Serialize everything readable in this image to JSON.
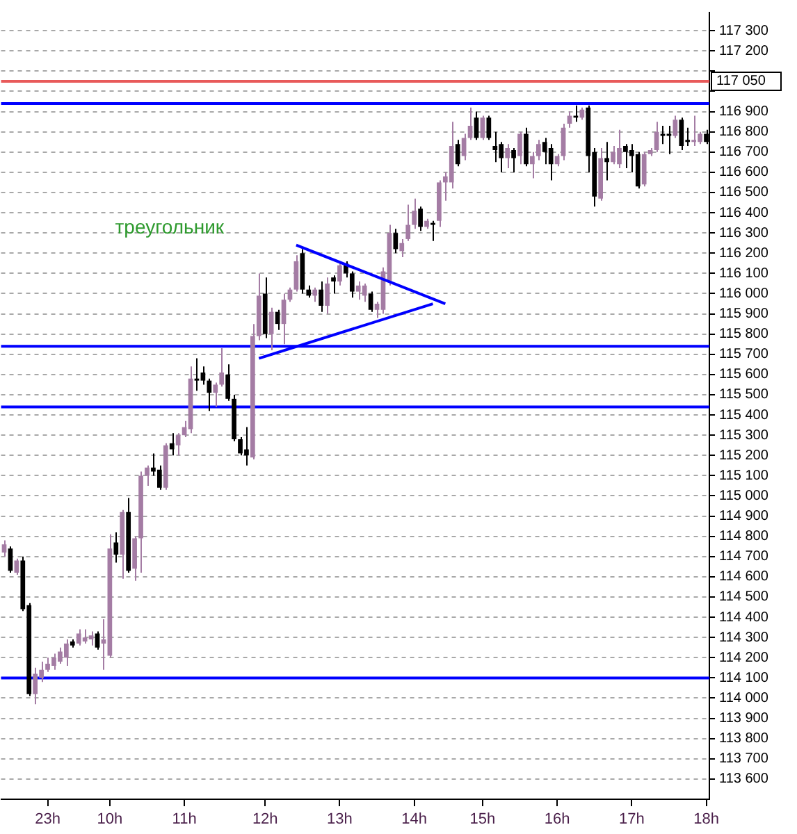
{
  "chart_data": {
    "type": "candlestick",
    "categories": [
      null,
      null,
      null,
      null,
      null,
      null,
      null,
      "23h",
      null,
      null,
      null,
      null,
      null,
      null,
      null,
      null,
      null,
      "10h",
      null,
      null,
      null,
      null,
      null,
      null,
      null,
      null,
      null,
      null,
      null,
      "11h",
      null,
      null,
      null,
      null,
      null,
      null,
      null,
      null,
      null,
      null,
      null,
      null,
      "12h",
      null,
      null,
      null,
      null,
      null,
      null,
      null,
      null,
      null,
      null,
      null,
      "13h",
      null,
      null,
      null,
      null,
      null,
      null,
      null,
      null,
      null,
      null,
      null,
      "14h",
      null,
      null,
      null,
      null,
      null,
      null,
      null,
      null,
      null,
      null,
      "15h",
      null,
      null,
      null,
      null,
      null,
      null,
      null,
      null,
      null,
      null,
      null,
      "16h",
      null,
      null,
      null,
      null,
      null,
      null,
      null,
      null,
      null,
      null,
      null,
      "17h",
      null,
      null,
      null,
      null,
      null,
      null,
      null,
      null,
      null,
      null,
      null,
      "18h"
    ],
    "ohlc": [
      [
        114720,
        114780,
        114700,
        114760
      ],
      [
        114740,
        114750,
        114620,
        114630
      ],
      [
        114620,
        114690,
        114610,
        114680
      ],
      [
        114680,
        114700,
        114430,
        114440
      ],
      [
        114460,
        114470,
        114010,
        114020
      ],
      [
        114020,
        114150,
        113970,
        114120
      ],
      [
        114100,
        114180,
        114080,
        114140
      ],
      [
        114140,
        114200,
        114130,
        114170
      ],
      [
        114160,
        114220,
        114140,
        114200
      ],
      [
        114180,
        114250,
        114170,
        114230
      ],
      [
        114200,
        114290,
        114160,
        114270
      ],
      [
        114280,
        114290,
        114250,
        114260
      ],
      [
        114270,
        114340,
        114260,
        114320
      ],
      [
        114280,
        114340,
        114270,
        114300
      ],
      [
        114290,
        114330,
        114260,
        114310
      ],
      [
        114320,
        114330,
        114240,
        114250
      ],
      [
        114270,
        114390,
        114140,
        114290
      ],
      [
        114210,
        114810,
        114200,
        114740
      ],
      [
        114770,
        114820,
        114670,
        114710
      ],
      [
        114710,
        114930,
        114590,
        114920
      ],
      [
        114920,
        114990,
        114620,
        114630
      ],
      [
        114640,
        114800,
        114580,
        114790
      ],
      [
        114790,
        115120,
        114620,
        115100
      ],
      [
        115100,
        115150,
        115050,
        115140
      ],
      [
        115140,
        115210,
        115100,
        115120
      ],
      [
        115130,
        115150,
        115030,
        115040
      ],
      [
        115040,
        115260,
        115030,
        115250
      ],
      [
        115260,
        115310,
        115200,
        115230
      ],
      [
        115250,
        115310,
        115200,
        115300
      ],
      [
        115300,
        115370,
        115290,
        115340
      ],
      [
        115330,
        115640,
        115310,
        115580
      ],
      [
        115580,
        115680,
        115520,
        115570
      ],
      [
        115610,
        115640,
        115550,
        115570
      ],
      [
        115570,
        115580,
        115420,
        115510
      ],
      [
        115510,
        115560,
        115440,
        115550
      ],
      [
        115550,
        115730,
        115540,
        115610
      ],
      [
        115600,
        115650,
        115470,
        115480
      ],
      [
        115480,
        115500,
        115270,
        115280
      ],
      [
        115280,
        115290,
        115200,
        115210
      ],
      [
        115230,
        115340,
        115150,
        115200
      ],
      [
        115190,
        115850,
        115180,
        115790
      ],
      [
        115790,
        116100,
        115770,
        115990
      ],
      [
        116000,
        116080,
        115780,
        115800
      ],
      [
        115800,
        115930,
        115720,
        115910
      ],
      [
        115910,
        115920,
        115820,
        115850
      ],
      [
        115850,
        116000,
        115750,
        115970
      ],
      [
        115970,
        116030,
        115960,
        116020
      ],
      [
        116020,
        116190,
        116010,
        116160
      ],
      [
        116200,
        116220,
        116000,
        116020
      ],
      [
        116020,
        116040,
        115980,
        115990
      ],
      [
        115990,
        116030,
        115960,
        116020
      ],
      [
        116020,
        116060,
        115910,
        115940
      ],
      [
        115940,
        116080,
        115900,
        116050
      ],
      [
        116080,
        116090,
        116000,
        116060
      ],
      [
        116060,
        116150,
        116040,
        116140
      ],
      [
        116150,
        116160,
        116080,
        116100
      ],
      [
        116100,
        116110,
        115980,
        116010
      ],
      [
        116010,
        116060,
        115970,
        116040
      ],
      [
        115990,
        116050,
        115960,
        116040
      ],
      [
        116000,
        116010,
        115910,
        115920
      ],
      [
        115920,
        115960,
        115880,
        115950
      ],
      [
        115920,
        116130,
        115900,
        116110
      ],
      [
        116060,
        116340,
        116040,
        116300
      ],
      [
        116300,
        116320,
        116200,
        116220
      ],
      [
        116210,
        116270,
        116180,
        116250
      ],
      [
        116270,
        116440,
        116260,
        116340
      ],
      [
        116340,
        116470,
        116320,
        116410
      ],
      [
        116420,
        116430,
        116310,
        116330
      ],
      [
        116330,
        116370,
        116320,
        116360
      ],
      [
        116350,
        116360,
        116260,
        116340
      ],
      [
        116360,
        116560,
        116330,
        116550
      ],
      [
        116550,
        116600,
        116460,
        116580
      ],
      [
        116550,
        116850,
        116520,
        116730
      ],
      [
        116740,
        116760,
        116630,
        116640
      ],
      [
        116680,
        116790,
        116660,
        116770
      ],
      [
        116770,
        116920,
        116760,
        116830
      ],
      [
        116870,
        116900,
        116760,
        116770
      ],
      [
        116770,
        116880,
        116760,
        116870
      ],
      [
        116870,
        116880,
        116760,
        116770
      ],
      [
        116730,
        116800,
        116650,
        116710
      ],
      [
        116740,
        116750,
        116600,
        116670
      ],
      [
        116670,
        116740,
        116620,
        116720
      ],
      [
        116710,
        116720,
        116600,
        116670
      ],
      [
        116680,
        116800,
        116640,
        116790
      ],
      [
        116790,
        116820,
        116630,
        116640
      ],
      [
        116640,
        116700,
        116570,
        116680
      ],
      [
        116680,
        116760,
        116660,
        116740
      ],
      [
        116750,
        116770,
        116640,
        116700
      ],
      [
        116720,
        116740,
        116560,
        116640
      ],
      [
        116640,
        116690,
        116630,
        116680
      ],
      [
        116680,
        116840,
        116660,
        116820
      ],
      [
        116840,
        116900,
        116820,
        116880
      ],
      [
        116880,
        116930,
        116850,
        116870
      ],
      [
        116870,
        116920,
        116860,
        116910
      ],
      [
        116920,
        116930,
        116600,
        116680
      ],
      [
        116700,
        116720,
        116430,
        116480
      ],
      [
        116470,
        116720,
        116460,
        116670
      ],
      [
        116670,
        116750,
        116560,
        116650
      ],
      [
        116650,
        116730,
        116640,
        116700
      ],
      [
        116640,
        116810,
        116620,
        116720
      ],
      [
        116730,
        116740,
        116620,
        116700
      ],
      [
        116710,
        116740,
        116600,
        116680
      ],
      [
        116690,
        116700,
        116520,
        116530
      ],
      [
        116540,
        116700,
        116530,
        116690
      ],
      [
        116690,
        116720,
        116680,
        116710
      ],
      [
        116710,
        116850,
        116700,
        116800
      ],
      [
        116790,
        116830,
        116740,
        116780
      ],
      [
        116790,
        116830,
        116690,
        116780
      ],
      [
        116780,
        116880,
        116770,
        116860
      ],
      [
        116860,
        116870,
        116710,
        116730
      ],
      [
        116760,
        116820,
        116730,
        116750
      ],
      [
        116750,
        116880,
        116730,
        116760
      ],
      [
        116750,
        116800,
        116740,
        116790
      ],
      [
        116790,
        116810,
        116740,
        116750
      ]
    ],
    "colors": [
      "#a47ca4",
      "#000000",
      "#a47ca4",
      "#000000",
      "#000000",
      "#a47ca4",
      "#a47ca4",
      "#a47ca4",
      "#a47ca4",
      "#a47ca4",
      "#a47ca4",
      "#000000",
      "#a47ca4",
      "#a47ca4",
      "#a47ca4",
      "#000000",
      "#a47ca4",
      "#a47ca4",
      "#000000",
      "#a47ca4",
      "#000000",
      "#a47ca4",
      "#a47ca4",
      "#a47ca4",
      "#000000",
      "#000000",
      "#a47ca4",
      "#000000",
      "#a47ca4",
      "#a47ca4",
      "#a47ca4",
      "#000000",
      "#000000",
      "#000000",
      "#a47ca4",
      "#a47ca4",
      "#000000",
      "#000000",
      "#000000",
      "#000000",
      "#a47ca4",
      "#a47ca4",
      "#000000",
      "#a47ca4",
      "#000000",
      "#a47ca4",
      "#a47ca4",
      "#a47ca4",
      "#000000",
      "#000000",
      "#a47ca4",
      "#000000",
      "#a47ca4",
      "#000000",
      "#a47ca4",
      "#000000",
      "#000000",
      "#a47ca4",
      "#a47ca4",
      "#000000",
      "#a47ca4",
      "#a47ca4",
      "#a47ca4",
      "#000000",
      "#a47ca4",
      "#a47ca4",
      "#a47ca4",
      "#000000",
      "#a47ca4",
      "#000000",
      "#a47ca4",
      "#a47ca4",
      "#a47ca4",
      "#000000",
      "#a47ca4",
      "#a47ca4",
      "#000000",
      "#a47ca4",
      "#000000",
      "#000000",
      "#000000",
      "#a47ca4",
      "#000000",
      "#a47ca4",
      "#000000",
      "#a47ca4",
      "#a47ca4",
      "#000000",
      "#000000",
      "#a47ca4",
      "#a47ca4",
      "#a47ca4",
      "#000000",
      "#a47ca4",
      "#000000",
      "#000000",
      "#a47ca4",
      "#000000",
      "#a47ca4",
      "#a47ca4",
      "#000000",
      "#000000",
      "#000000",
      "#a47ca4",
      "#a47ca4",
      "#a47ca4",
      "#000000",
      "#000000",
      "#a47ca4",
      "#000000",
      "#000000",
      "#a47ca4",
      "#a47ca4",
      "#000000"
    ],
    "ylim": [
      113500,
      117390
    ],
    "yticks": [
      {
        "value": 113600,
        "label": "113 600"
      },
      {
        "value": 113700,
        "label": "113 700"
      },
      {
        "value": 113800,
        "label": "113 800"
      },
      {
        "value": 113900,
        "label": "113 900"
      },
      {
        "value": 114000,
        "label": "114 000"
      },
      {
        "value": 114100,
        "label": "114 100"
      },
      {
        "value": 114200,
        "label": "114 200"
      },
      {
        "value": 114300,
        "label": "114 300"
      },
      {
        "value": 114400,
        "label": "114 400"
      },
      {
        "value": 114500,
        "label": "114 500"
      },
      {
        "value": 114600,
        "label": "114 600"
      },
      {
        "value": 114700,
        "label": "114 700"
      },
      {
        "value": 114800,
        "label": "114 800"
      },
      {
        "value": 114900,
        "label": "114 900"
      },
      {
        "value": 115000,
        "label": "115 000"
      },
      {
        "value": 115100,
        "label": "115 100"
      },
      {
        "value": 115200,
        "label": "115 200"
      },
      {
        "value": 115300,
        "label": "115 300"
      },
      {
        "value": 115400,
        "label": "115 400"
      },
      {
        "value": 115500,
        "label": "115 500"
      },
      {
        "value": 115600,
        "label": "115 600"
      },
      {
        "value": 115700,
        "label": "115 700"
      },
      {
        "value": 115800,
        "label": "115 800"
      },
      {
        "value": 115900,
        "label": "115 900"
      },
      {
        "value": 116000,
        "label": "116 000"
      },
      {
        "value": 116100,
        "label": "116 100"
      },
      {
        "value": 116200,
        "label": "116 200"
      },
      {
        "value": 116300,
        "label": "116 300"
      },
      {
        "value": 116400,
        "label": "116 400"
      },
      {
        "value": 116500,
        "label": "116 500"
      },
      {
        "value": 116600,
        "label": "116 600"
      },
      {
        "value": 116700,
        "label": "116 700"
      },
      {
        "value": 116800,
        "label": "116 800"
      },
      {
        "value": 116900,
        "label": "116 900"
      },
      {
        "value": 117000,
        "label": null
      },
      {
        "value": 117100,
        "label": null
      },
      {
        "value": 117200,
        "label": "117 200"
      },
      {
        "value": 117300,
        "label": "117 300"
      }
    ],
    "series": [
      {
        "type": "line",
        "color": "#0000ff",
        "values": [
          null,
          null,
          null,
          null,
          null,
          null,
          null,
          null,
          null,
          null,
          null,
          null,
          null,
          null,
          null,
          null,
          null,
          null,
          null,
          null,
          null,
          null,
          null,
          null,
          null,
          null,
          null,
          null,
          null,
          null,
          null,
          null,
          null,
          null,
          null,
          null,
          null,
          null,
          null,
          null,
          null,
          null,
          null,
          null,
          null,
          null,
          null,
          116240,
          null,
          null,
          null,
          null,
          null,
          null,
          null,
          null,
          null,
          null,
          null,
          null,
          null,
          null,
          null,
          null,
          null,
          null,
          null,
          null,
          null,
          null,
          null,
          115950,
          null,
          null,
          null,
          null,
          null,
          null,
          null,
          null,
          null,
          null,
          null,
          null,
          null,
          null,
          null,
          null,
          null,
          null,
          null,
          null,
          null,
          null,
          null,
          null,
          null,
          null,
          null,
          null,
          null,
          null,
          null,
          null,
          null,
          null,
          null,
          null,
          null,
          null,
          null,
          null,
          null,
          null
        ]
      },
      {
        "type": "line",
        "color": "#0000ff",
        "values": [
          null,
          null,
          null,
          null,
          null,
          null,
          null,
          null,
          null,
          null,
          null,
          null,
          null,
          null,
          null,
          null,
          null,
          null,
          null,
          null,
          null,
          null,
          null,
          null,
          null,
          null,
          null,
          null,
          null,
          null,
          null,
          null,
          null,
          null,
          null,
          null,
          null,
          null,
          null,
          null,
          null,
          115680,
          null,
          null,
          null,
          null,
          null,
          null,
          null,
          null,
          null,
          null,
          null,
          null,
          null,
          null,
          null,
          null,
          null,
          null,
          null,
          null,
          null,
          null,
          null,
          null,
          null,
          null,
          null,
          115950,
          null,
          null,
          null,
          null,
          null,
          null,
          null,
          null,
          null,
          null,
          null,
          null,
          null,
          null,
          null,
          null,
          null,
          null,
          null,
          null,
          null,
          null,
          null,
          null,
          null,
          null,
          null,
          null,
          null,
          null,
          null,
          null,
          null,
          null,
          null,
          null,
          null,
          null,
          null,
          null,
          null,
          null,
          null,
          null
        ]
      }
    ],
    "grid": "y",
    "legend": false,
    "ref_lines": [
      {
        "axis": "y",
        "value": 117050,
        "label": "117 050",
        "color": "#e85a5a"
      },
      {
        "axis": "y",
        "value": 116940,
        "color": "#0000ff"
      },
      {
        "axis": "y",
        "value": 115740,
        "color": "#0000ff"
      },
      {
        "axis": "y",
        "value": 115440,
        "color": "#0000ff"
      },
      {
        "axis": "y",
        "value": 114100,
        "color": "#0000ff"
      }
    ],
    "annotations": [
      "треугольник"
    ]
  }
}
